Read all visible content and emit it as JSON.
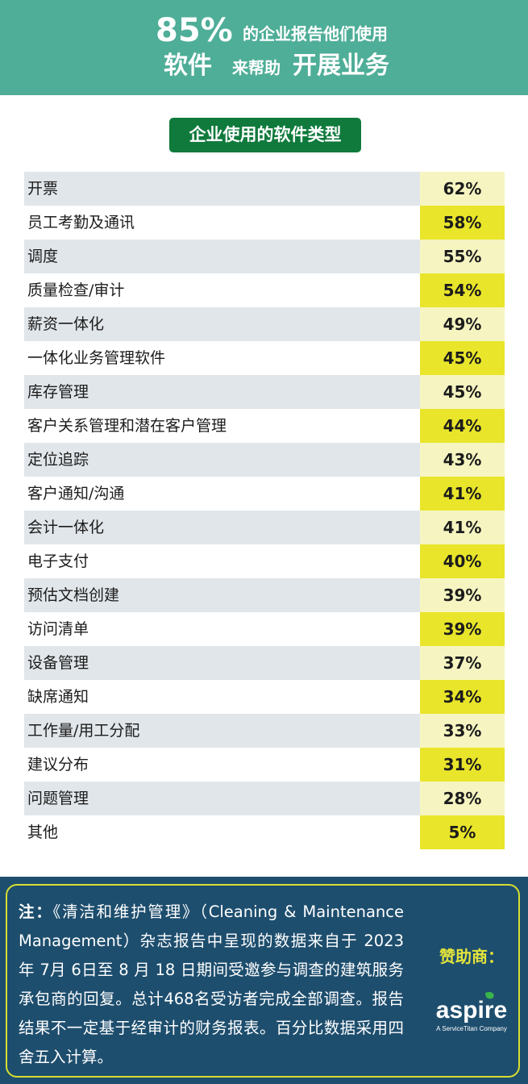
{
  "header": {
    "line1_big": "85%",
    "line1_rest": "的企业报告他们使用",
    "line2_a": "软件",
    "line2_b": "来帮助",
    "line2_c": "开展业务"
  },
  "chart_data": {
    "type": "table",
    "title": "企业使用的软件类型",
    "categories": [
      "开票",
      "员工考勤及通讯",
      "调度",
      "质量检查/审计",
      "薪资一体化",
      "一体化业务管理软件",
      "库存管理",
      "客户关系管理和潜在客户管理",
      "定位追踪",
      "客户通知/沟通",
      "会计一体化",
      "电子支付",
      "预估文档创建",
      "访问清单",
      "设备管理",
      "缺席通知",
      "工作量/用工分配",
      "建议分布",
      "问题管理",
      "其他"
    ],
    "values": [
      62,
      58,
      55,
      54,
      49,
      45,
      45,
      44,
      43,
      41,
      41,
      40,
      39,
      39,
      37,
      34,
      33,
      31,
      28,
      5
    ],
    "value_labels": [
      "62%",
      "58%",
      "55%",
      "54%",
      "49%",
      "45%",
      "45%",
      "44%",
      "43%",
      "41%",
      "41%",
      "40%",
      "39%",
      "39%",
      "37%",
      "34%",
      "33%",
      "31%",
      "28%",
      "5%"
    ],
    "unit": "%"
  },
  "footer": {
    "note_label": "注：",
    "note_text": "《清洁和维护管理》（Cleaning & Maintenance Management）杂志报告中呈现的数据来自于 2023 年 7月 6日至 8 月 18 日期间受邀参与调查的建筑服务承包商的回复。总计468名受访者完成全部调查。报告结果不一定基于经审计的财务报表。百分比数据采用四舍五入计算。",
    "sponsor_label": "赞助商：",
    "logo_text": "aspire",
    "logo_sub": "A ServiceTitan Company"
  },
  "colors": {
    "header_bg": "#4fae98",
    "title_pill": "#0f7a3c",
    "row_label_alt": "#e1e6ea",
    "value_light": "#f6f5c2",
    "value_strong": "#e9e52a",
    "footer_bg": "#1e4e6e",
    "footer_border": "#d8de2f",
    "logo_leaf": "#39b54a"
  }
}
